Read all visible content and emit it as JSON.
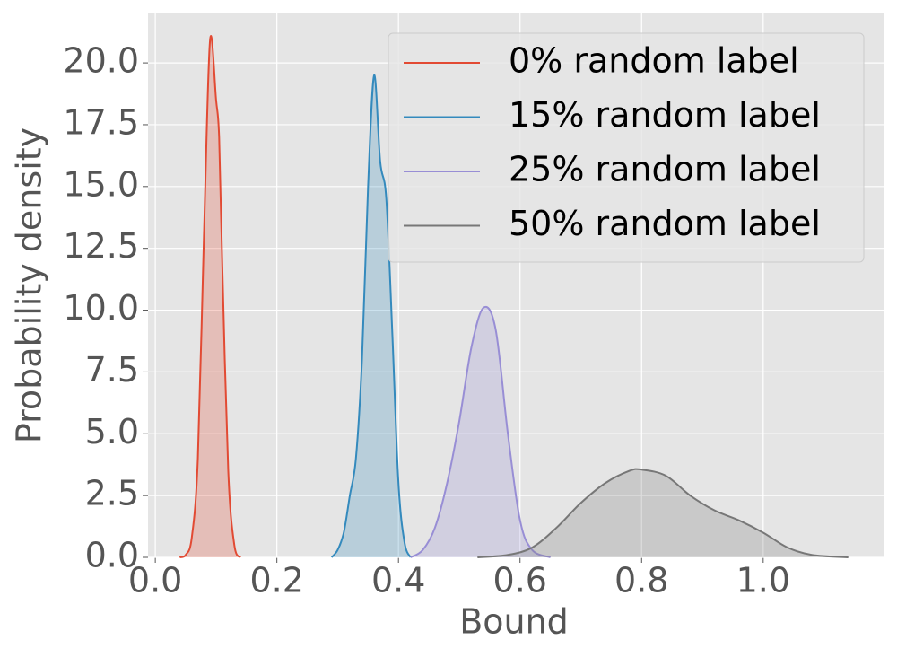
{
  "chart_data": {
    "type": "density",
    "xlabel": "Bound",
    "ylabel": "Probability density",
    "xlim": [
      -0.012,
      1.198
    ],
    "ylim": [
      0,
      22
    ],
    "xticks": [
      {
        "value": 0,
        "label": "0.0"
      },
      0.2,
      0.4,
      0.6,
      0.8,
      {
        "value": 1,
        "label": "1.0"
      }
    ],
    "yticks": [
      {
        "value": 0,
        "label": "0.0"
      },
      2.5,
      {
        "value": 5,
        "label": "5.0"
      },
      7.5,
      {
        "value": 10,
        "label": "10.0"
      },
      12.5,
      {
        "value": 15,
        "label": "15.0"
      },
      17.5,
      {
        "value": 20,
        "label": "20.0"
      }
    ],
    "grid": true,
    "legend": "upper right",
    "series": [
      {
        "name": "0% random label",
        "color": "#e24a33",
        "x": [
          0.04,
          0.05,
          0.06,
          0.07,
          0.08,
          0.09,
          0.1,
          0.105,
          0.11,
          0.12,
          0.13,
          0.14
        ],
        "values": [
          0,
          0.1,
          0.8,
          4,
          13,
          20.9,
          18.5,
          17,
          12,
          3.5,
          0.5,
          0
        ]
      },
      {
        "name": "15% random label",
        "color": "#348abd",
        "x": [
          0.29,
          0.3,
          0.31,
          0.32,
          0.33,
          0.34,
          0.35,
          0.36,
          0.37,
          0.38,
          0.39,
          0.4,
          0.41,
          0.42
        ],
        "values": [
          0,
          0.3,
          1,
          2.5,
          4,
          8,
          15,
          19.5,
          16,
          14.5,
          9,
          3,
          0.6,
          0
        ]
      },
      {
        "name": "25% random label",
        "color": "#988ed5",
        "x": [
          0.42,
          0.44,
          0.46,
          0.48,
          0.5,
          0.52,
          0.54,
          0.56,
          0.58,
          0.6,
          0.62,
          0.65
        ],
        "values": [
          0,
          0.3,
          1.2,
          3,
          5.5,
          8.5,
          10.1,
          9.2,
          5,
          1.5,
          0.3,
          0
        ]
      },
      {
        "name": "50% random label",
        "color": "#777777",
        "x": [
          0.53,
          0.58,
          0.62,
          0.66,
          0.7,
          0.74,
          0.78,
          0.8,
          0.84,
          0.88,
          0.92,
          0.96,
          1,
          1.04,
          1.08,
          1.14
        ],
        "values": [
          0,
          0.1,
          0.4,
          1.2,
          2.2,
          3,
          3.5,
          3.55,
          3.3,
          2.5,
          1.9,
          1.5,
          1,
          0.4,
          0.1,
          0
        ]
      }
    ]
  }
}
